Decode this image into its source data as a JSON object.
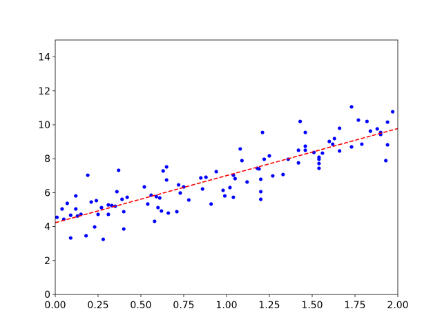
{
  "chart_data": {
    "type": "scatter",
    "xlim": [
      0,
      2
    ],
    "ylim": [
      0,
      15
    ],
    "xticks": [
      {
        "value": 0,
        "label": "0.00"
      },
      {
        "value": 0.25,
        "label": "0.25"
      },
      {
        "value": 0.5,
        "label": "0.50"
      },
      {
        "value": 0.75,
        "label": "0.75"
      },
      {
        "value": 1,
        "label": "1.00"
      },
      {
        "value": 1.25,
        "label": "1.25"
      },
      {
        "value": 1.5,
        "label": "1.50"
      },
      {
        "value": 1.75,
        "label": "1.75"
      },
      {
        "value": 2,
        "label": "2.00"
      }
    ],
    "yticks": [
      0,
      2,
      4,
      6,
      8,
      10,
      12,
      14
    ],
    "series": [
      {
        "mode": "points",
        "color": "#0000ff",
        "x": [
          0.01,
          0.04,
          0.05,
          0.07,
          0.09,
          0.09,
          0.12,
          0.12,
          0.13,
          0.15,
          0.18,
          0.19,
          0.21,
          0.23,
          0.24,
          0.25,
          0.27,
          0.28,
          0.31,
          0.31,
          0.33,
          0.35,
          0.36,
          0.37,
          0.39,
          0.4,
          0.4,
          0.42,
          0.52,
          0.54,
          0.56,
          0.58,
          0.59,
          0.6,
          0.61,
          0.62,
          0.63,
          0.65,
          0.65,
          0.66,
          0.71,
          0.72,
          0.73,
          0.75,
          0.78,
          0.85,
          0.86,
          0.88,
          0.91,
          0.94,
          0.98,
          0.99,
          1.02,
          1.04,
          1.04,
          1.05,
          1.08,
          1.09,
          1.12,
          1.18,
          1.19,
          1.2,
          1.2,
          1.2,
          1.21,
          1.22,
          1.25,
          1.27,
          1.33,
          1.36,
          1.42,
          1.42,
          1.43,
          1.46,
          1.46,
          1.46,
          1.51,
          1.54,
          1.54,
          1.54,
          1.54,
          1.56,
          1.6,
          1.62,
          1.63,
          1.66,
          1.66,
          1.73,
          1.73,
          1.77,
          1.79,
          1.82,
          1.84,
          1.88,
          1.9,
          1.9,
          1.93,
          1.94,
          1.94,
          1.97
        ],
        "values": [
          4.55,
          5.04,
          4.43,
          5.37,
          4.67,
          3.33,
          5.81,
          5.04,
          4.63,
          4.72,
          3.46,
          7.03,
          5.45,
          3.98,
          5.53,
          4.72,
          5.12,
          3.25,
          5.28,
          4.72,
          5.24,
          5.2,
          6.06,
          7.32,
          5.61,
          4.88,
          3.86,
          5.73,
          6.34,
          5.33,
          5.85,
          4.31,
          5.77,
          5.12,
          5.69,
          4.92,
          7.28,
          7.52,
          6.75,
          4.8,
          4.88,
          6.46,
          5.98,
          6.34,
          5.57,
          6.87,
          6.22,
          6.91,
          5.33,
          7.24,
          6.14,
          5.81,
          6.3,
          5.73,
          7.03,
          6.83,
          8.58,
          7.89,
          6.63,
          7.44,
          7.4,
          6.06,
          5.61,
          6.79,
          9.55,
          7.97,
          8.17,
          6.99,
          7.07,
          7.97,
          8.5,
          7.76,
          10.2,
          9.55,
          8.74,
          8.5,
          8.37,
          7.44,
          7.72,
          7.97,
          8.09,
          8.33,
          9.02,
          8.86,
          9.19,
          9.8,
          8.46,
          11.06,
          8.7,
          10.28,
          8.86,
          10.2,
          9.63,
          9.76,
          9.55,
          9.43,
          7.89,
          8.82,
          10.16,
          10.77
        ]
      },
      {
        "mode": "line",
        "dash": "dashed",
        "color": "#ff0000",
        "x": [
          0,
          2
        ],
        "values": [
          4.23,
          9.78
        ]
      }
    ]
  }
}
